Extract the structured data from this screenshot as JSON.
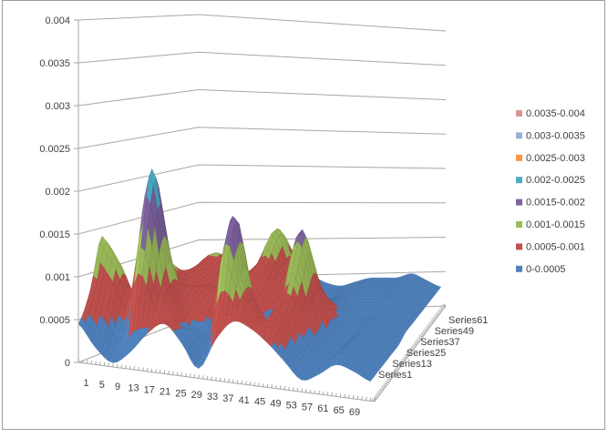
{
  "chart_data": {
    "type": "surface",
    "title": "",
    "value_axis": {
      "min": 0,
      "max": 0.004,
      "step": 0.0005,
      "tick_labels": [
        "0",
        "0.0005",
        "0.001",
        "0.0015",
        "0.002",
        "0.0025",
        "0.003",
        "0.0035",
        "0.004"
      ]
    },
    "category_axis": {
      "first": 1,
      "last": 69,
      "label_step": 4,
      "tick_labels": [
        "1",
        "5",
        "9",
        "13",
        "17",
        "21",
        "25",
        "29",
        "33",
        "37",
        "41",
        "45",
        "49",
        "53",
        "57",
        "61",
        "65",
        "69"
      ]
    },
    "series_axis": {
      "first": 1,
      "last": 61,
      "label_step": 12,
      "tick_labels": [
        "Series1",
        "Series13",
        "Series25",
        "Series37",
        "Series49",
        "Series61"
      ]
    },
    "legend": {
      "position": "right",
      "entries": [
        {
          "label": "0.0035-0.004",
          "color": "#D99694"
        },
        {
          "label": "0.003-0.0035",
          "color": "#95B3D7"
        },
        {
          "label": "0.0025-0.003",
          "color": "#F79646"
        },
        {
          "label": "0.002-0.0025",
          "color": "#4BACC6"
        },
        {
          "label": "0.0015-0.002",
          "color": "#8064A2"
        },
        {
          "label": "0.001-0.0015",
          "color": "#9BBB59"
        },
        {
          "label": "0.0005-0.001",
          "color": "#C0504D"
        },
        {
          "label": "0-0.0005",
          "color": "#4F81BD"
        }
      ]
    },
    "gridlines": true,
    "surface_grid": {
      "approximate": true,
      "value_scale": 0.0001,
      "categories": [
        1,
        5,
        9,
        13,
        17,
        21,
        25,
        29,
        33,
        37,
        41,
        45,
        49,
        53,
        57,
        61,
        65,
        69
      ],
      "series": [
        1,
        7,
        13,
        19,
        25,
        31,
        37,
        43,
        49,
        55,
        61
      ],
      "values": [
        [
          4.5,
          2,
          0.5,
          2,
          4.5,
          6,
          4,
          1.2,
          5,
          7.5,
          7,
          5.5,
          3.5,
          1.5,
          2.5,
          4,
          3.5,
          2.5
        ],
        [
          8,
          6,
          4,
          14,
          8,
          5.5,
          4.5,
          3,
          16,
          10,
          7,
          8,
          4,
          2,
          3,
          4.5,
          3.5,
          2.5
        ],
        [
          14,
          11,
          8,
          23,
          12,
          5,
          4.5,
          4,
          18.5,
          10,
          6,
          9,
          6,
          3,
          3,
          4.5,
          3.5,
          2.5
        ],
        [
          9,
          7,
          6,
          13,
          9,
          8,
          6.5,
          5,
          9,
          4.5,
          6,
          13,
          7,
          3,
          3,
          4.5,
          3.5,
          2.5
        ],
        [
          7,
          6,
          5.5,
          10,
          8,
          8,
          7,
          6,
          6,
          5,
          10,
          16.5,
          9,
          4,
          3,
          4.5,
          3.5,
          2.5
        ],
        [
          6,
          5.5,
          6,
          9,
          8.5,
          7.5,
          6.5,
          6,
          5.5,
          5,
          7,
          10,
          7,
          4,
          3.5,
          4.5,
          3.5,
          3
        ],
        [
          5,
          5,
          6,
          9,
          9.5,
          7.5,
          7,
          8,
          6,
          4.5,
          5,
          6,
          5,
          4,
          3.5,
          4.5,
          4,
          3
        ],
        [
          4,
          4.5,
          6,
          9.5,
          10,
          7.5,
          8,
          11,
          7,
          4.5,
          4,
          4.5,
          4.5,
          4,
          4,
          5,
          4,
          3
        ],
        [
          3.5,
          4,
          5,
          8,
          8,
          7,
          9,
          13,
          8,
          4.5,
          3.5,
          4,
          4.5,
          4.5,
          4.5,
          5,
          4,
          3
        ],
        [
          3,
          3.5,
          4,
          6,
          6,
          5.5,
          7,
          10,
          6.5,
          4,
          3.5,
          4,
          4.5,
          4.5,
          4.5,
          5,
          4,
          3
        ],
        [
          3,
          3,
          3.5,
          4.5,
          5,
          5,
          5.5,
          5.5,
          5,
          4,
          3.5,
          4,
          4.5,
          4.5,
          4.5,
          5,
          4,
          3
        ]
      ]
    }
  },
  "frame": {
    "background": "#FFFFFF",
    "border_color": "#9D9D9D"
  },
  "styles": {
    "axis_color": "#A6A6A6",
    "label_color": "#404040"
  }
}
